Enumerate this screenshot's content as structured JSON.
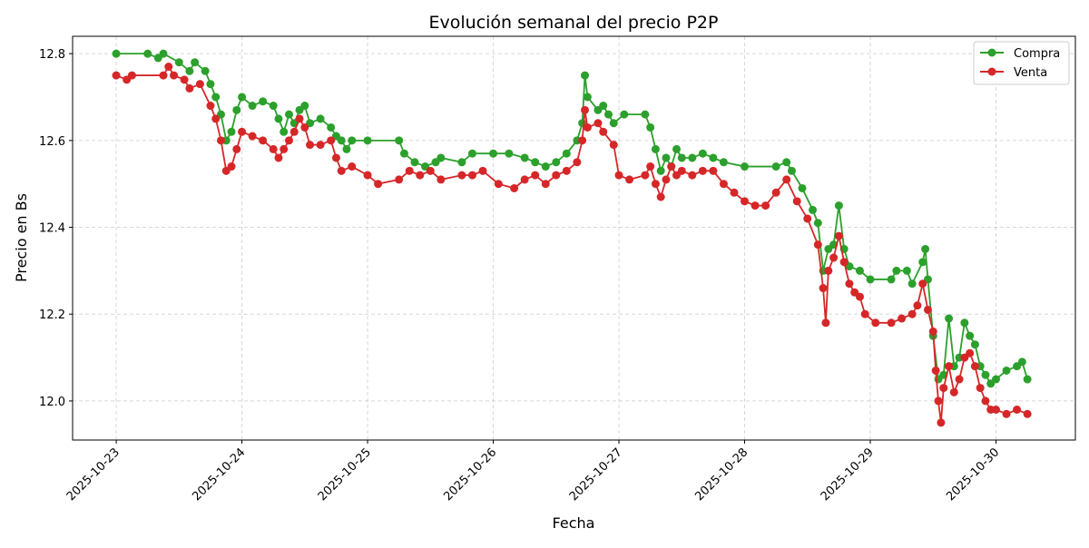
{
  "chart_data": {
    "type": "line",
    "title": "Evolución semanal del precio P2P",
    "xlabel": "Fecha",
    "ylabel": "Precio en Bs",
    "x_ticks": [
      "2025-10-23",
      "2025-10-24",
      "2025-10-25",
      "2025-10-26",
      "2025-10-27",
      "2025-10-28",
      "2025-10-29",
      "2025-10-30"
    ],
    "y_ticks": [
      "12.0",
      "12.2",
      "12.4",
      "12.6",
      "12.8"
    ],
    "ylim": [
      11.91,
      12.84
    ],
    "xlim": [
      "2025-10-22 15:40",
      "2025-10-30 15:10"
    ],
    "grid": true,
    "legend_position": "top-right",
    "series": [
      {
        "name": "Compra",
        "color": "#2ca02c",
        "points": [
          [
            "2025-10-23 00:00",
            12.8
          ],
          [
            "2025-10-23 06:00",
            12.8
          ],
          [
            "2025-10-23 08:00",
            12.79
          ],
          [
            "2025-10-23 09:00",
            12.8
          ],
          [
            "2025-10-23 12:00",
            12.78
          ],
          [
            "2025-10-23 14:00",
            12.76
          ],
          [
            "2025-10-23 15:00",
            12.78
          ],
          [
            "2025-10-23 17:00",
            12.76
          ],
          [
            "2025-10-23 18:00",
            12.73
          ],
          [
            "2025-10-23 19:00",
            12.7
          ],
          [
            "2025-10-23 20:00",
            12.66
          ],
          [
            "2025-10-23 21:00",
            12.6
          ],
          [
            "2025-10-23 22:00",
            12.62
          ],
          [
            "2025-10-23 23:00",
            12.67
          ],
          [
            "2025-10-24 00:00",
            12.7
          ],
          [
            "2025-10-24 02:00",
            12.68
          ],
          [
            "2025-10-24 04:00",
            12.69
          ],
          [
            "2025-10-24 06:00",
            12.68
          ],
          [
            "2025-10-24 07:00",
            12.65
          ],
          [
            "2025-10-24 08:00",
            12.62
          ],
          [
            "2025-10-24 09:00",
            12.66
          ],
          [
            "2025-10-24 10:00",
            12.64
          ],
          [
            "2025-10-24 11:00",
            12.67
          ],
          [
            "2025-10-24 12:00",
            12.68
          ],
          [
            "2025-10-24 13:00",
            12.64
          ],
          [
            "2025-10-24 15:00",
            12.65
          ],
          [
            "2025-10-24 17:00",
            12.63
          ],
          [
            "2025-10-24 18:00",
            12.61
          ],
          [
            "2025-10-24 19:00",
            12.6
          ],
          [
            "2025-10-24 20:00",
            12.58
          ],
          [
            "2025-10-24 21:00",
            12.6
          ],
          [
            "2025-10-25 00:00",
            12.6
          ],
          [
            "2025-10-25 06:00",
            12.6
          ],
          [
            "2025-10-25 07:00",
            12.57
          ],
          [
            "2025-10-25 09:00",
            12.55
          ],
          [
            "2025-10-25 11:00",
            12.54
          ],
          [
            "2025-10-25 13:00",
            12.55
          ],
          [
            "2025-10-25 14:00",
            12.56
          ],
          [
            "2025-10-25 18:00",
            12.55
          ],
          [
            "2025-10-25 20:00",
            12.57
          ],
          [
            "2025-10-26 00:00",
            12.57
          ],
          [
            "2025-10-26 03:00",
            12.57
          ],
          [
            "2025-10-26 06:00",
            12.56
          ],
          [
            "2025-10-26 08:00",
            12.55
          ],
          [
            "2025-10-26 10:00",
            12.54
          ],
          [
            "2025-10-26 12:00",
            12.55
          ],
          [
            "2025-10-26 14:00",
            12.57
          ],
          [
            "2025-10-26 16:00",
            12.6
          ],
          [
            "2025-10-26 17:00",
            12.64
          ],
          [
            "2025-10-26 17:30",
            12.75
          ],
          [
            "2025-10-26 18:00",
            12.7
          ],
          [
            "2025-10-26 20:00",
            12.67
          ],
          [
            "2025-10-26 21:00",
            12.68
          ],
          [
            "2025-10-26 22:00",
            12.66
          ],
          [
            "2025-10-26 23:00",
            12.64
          ],
          [
            "2025-10-27 01:00",
            12.66
          ],
          [
            "2025-10-27 05:00",
            12.66
          ],
          [
            "2025-10-27 06:00",
            12.63
          ],
          [
            "2025-10-27 07:00",
            12.58
          ],
          [
            "2025-10-27 08:00",
            12.53
          ],
          [
            "2025-10-27 09:00",
            12.56
          ],
          [
            "2025-10-27 10:00",
            12.54
          ],
          [
            "2025-10-27 11:00",
            12.58
          ],
          [
            "2025-10-27 12:00",
            12.56
          ],
          [
            "2025-10-27 14:00",
            12.56
          ],
          [
            "2025-10-27 16:00",
            12.57
          ],
          [
            "2025-10-27 18:00",
            12.56
          ],
          [
            "2025-10-27 20:00",
            12.55
          ],
          [
            "2025-10-28 00:00",
            12.54
          ],
          [
            "2025-10-28 06:00",
            12.54
          ],
          [
            "2025-10-28 08:00",
            12.55
          ],
          [
            "2025-10-28 09:00",
            12.53
          ],
          [
            "2025-10-28 11:00",
            12.49
          ],
          [
            "2025-10-28 13:00",
            12.44
          ],
          [
            "2025-10-28 14:00",
            12.41
          ],
          [
            "2025-10-28 15:00",
            12.3
          ],
          [
            "2025-10-28 16:00",
            12.35
          ],
          [
            "2025-10-28 17:00",
            12.36
          ],
          [
            "2025-10-28 18:00",
            12.45
          ],
          [
            "2025-10-28 19:00",
            12.35
          ],
          [
            "2025-10-28 20:00",
            12.31
          ],
          [
            "2025-10-28 22:00",
            12.3
          ],
          [
            "2025-10-29 00:00",
            12.28
          ],
          [
            "2025-10-29 04:00",
            12.28
          ],
          [
            "2025-10-29 05:00",
            12.3
          ],
          [
            "2025-10-29 07:00",
            12.3
          ],
          [
            "2025-10-29 08:00",
            12.27
          ],
          [
            "2025-10-29 10:00",
            12.32
          ],
          [
            "2025-10-29 10:30",
            12.35
          ],
          [
            "2025-10-29 11:00",
            12.28
          ],
          [
            "2025-10-29 12:00",
            12.15
          ],
          [
            "2025-10-29 13:00",
            12.05
          ],
          [
            "2025-10-29 14:00",
            12.06
          ],
          [
            "2025-10-29 15:00",
            12.19
          ],
          [
            "2025-10-29 16:00",
            12.08
          ],
          [
            "2025-10-29 17:00",
            12.1
          ],
          [
            "2025-10-29 18:00",
            12.18
          ],
          [
            "2025-10-29 19:00",
            12.15
          ],
          [
            "2025-10-29 20:00",
            12.13
          ],
          [
            "2025-10-29 21:00",
            12.08
          ],
          [
            "2025-10-29 22:00",
            12.06
          ],
          [
            "2025-10-29 23:00",
            12.04
          ],
          [
            "2025-10-30 00:00",
            12.05
          ],
          [
            "2025-10-30 02:00",
            12.07
          ],
          [
            "2025-10-30 04:00",
            12.08
          ],
          [
            "2025-10-30 05:00",
            12.09
          ],
          [
            "2025-10-30 06:00",
            12.05
          ]
        ]
      },
      {
        "name": "Venta",
        "color": "#d62728",
        "points": [
          [
            "2025-10-23 00:00",
            12.75
          ],
          [
            "2025-10-23 02:00",
            12.74
          ],
          [
            "2025-10-23 03:00",
            12.75
          ],
          [
            "2025-10-23 09:00",
            12.75
          ],
          [
            "2025-10-23 10:00",
            12.77
          ],
          [
            "2025-10-23 11:00",
            12.75
          ],
          [
            "2025-10-23 13:00",
            12.74
          ],
          [
            "2025-10-23 14:00",
            12.72
          ],
          [
            "2025-10-23 16:00",
            12.73
          ],
          [
            "2025-10-23 18:00",
            12.68
          ],
          [
            "2025-10-23 19:00",
            12.65
          ],
          [
            "2025-10-23 20:00",
            12.6
          ],
          [
            "2025-10-23 21:00",
            12.53
          ],
          [
            "2025-10-23 22:00",
            12.54
          ],
          [
            "2025-10-23 23:00",
            12.58
          ],
          [
            "2025-10-24 00:00",
            12.62
          ],
          [
            "2025-10-24 02:00",
            12.61
          ],
          [
            "2025-10-24 04:00",
            12.6
          ],
          [
            "2025-10-24 06:00",
            12.58
          ],
          [
            "2025-10-24 07:00",
            12.56
          ],
          [
            "2025-10-24 08:00",
            12.58
          ],
          [
            "2025-10-24 09:00",
            12.6
          ],
          [
            "2025-10-24 10:00",
            12.62
          ],
          [
            "2025-10-24 11:00",
            12.65
          ],
          [
            "2025-10-24 12:00",
            12.63
          ],
          [
            "2025-10-24 13:00",
            12.59
          ],
          [
            "2025-10-24 15:00",
            12.59
          ],
          [
            "2025-10-24 17:00",
            12.6
          ],
          [
            "2025-10-24 18:00",
            12.56
          ],
          [
            "2025-10-24 19:00",
            12.53
          ],
          [
            "2025-10-24 21:00",
            12.54
          ],
          [
            "2025-10-25 00:00",
            12.52
          ],
          [
            "2025-10-25 02:00",
            12.5
          ],
          [
            "2025-10-25 06:00",
            12.51
          ],
          [
            "2025-10-25 08:00",
            12.53
          ],
          [
            "2025-10-25 10:00",
            12.52
          ],
          [
            "2025-10-25 12:00",
            12.53
          ],
          [
            "2025-10-25 14:00",
            12.51
          ],
          [
            "2025-10-25 18:00",
            12.52
          ],
          [
            "2025-10-25 20:00",
            12.52
          ],
          [
            "2025-10-25 22:00",
            12.53
          ],
          [
            "2025-10-26 01:00",
            12.5
          ],
          [
            "2025-10-26 04:00",
            12.49
          ],
          [
            "2025-10-26 06:00",
            12.51
          ],
          [
            "2025-10-26 08:00",
            12.52
          ],
          [
            "2025-10-26 10:00",
            12.5
          ],
          [
            "2025-10-26 12:00",
            12.52
          ],
          [
            "2025-10-26 14:00",
            12.53
          ],
          [
            "2025-10-26 16:00",
            12.55
          ],
          [
            "2025-10-26 17:00",
            12.6
          ],
          [
            "2025-10-26 17:30",
            12.67
          ],
          [
            "2025-10-26 18:00",
            12.63
          ],
          [
            "2025-10-26 20:00",
            12.64
          ],
          [
            "2025-10-26 21:00",
            12.62
          ],
          [
            "2025-10-26 23:00",
            12.59
          ],
          [
            "2025-10-27 00:00",
            12.52
          ],
          [
            "2025-10-27 02:00",
            12.51
          ],
          [
            "2025-10-27 05:00",
            12.52
          ],
          [
            "2025-10-27 06:00",
            12.54
          ],
          [
            "2025-10-27 07:00",
            12.5
          ],
          [
            "2025-10-27 08:00",
            12.47
          ],
          [
            "2025-10-27 09:00",
            12.51
          ],
          [
            "2025-10-27 10:00",
            12.54
          ],
          [
            "2025-10-27 11:00",
            12.52
          ],
          [
            "2025-10-27 12:00",
            12.53
          ],
          [
            "2025-10-27 14:00",
            12.52
          ],
          [
            "2025-10-27 16:00",
            12.53
          ],
          [
            "2025-10-27 18:00",
            12.53
          ],
          [
            "2025-10-27 20:00",
            12.5
          ],
          [
            "2025-10-27 22:00",
            12.48
          ],
          [
            "2025-10-28 00:00",
            12.46
          ],
          [
            "2025-10-28 02:00",
            12.45
          ],
          [
            "2025-10-28 04:00",
            12.45
          ],
          [
            "2025-10-28 06:00",
            12.48
          ],
          [
            "2025-10-28 08:00",
            12.51
          ],
          [
            "2025-10-28 10:00",
            12.46
          ],
          [
            "2025-10-28 12:00",
            12.42
          ],
          [
            "2025-10-28 14:00",
            12.36
          ],
          [
            "2025-10-28 15:00",
            12.26
          ],
          [
            "2025-10-28 15:30",
            12.18
          ],
          [
            "2025-10-28 16:00",
            12.3
          ],
          [
            "2025-10-28 17:00",
            12.33
          ],
          [
            "2025-10-28 18:00",
            12.38
          ],
          [
            "2025-10-28 19:00",
            12.32
          ],
          [
            "2025-10-28 20:00",
            12.27
          ],
          [
            "2025-10-28 21:00",
            12.25
          ],
          [
            "2025-10-28 22:00",
            12.24
          ],
          [
            "2025-10-28 23:00",
            12.2
          ],
          [
            "2025-10-29 01:00",
            12.18
          ],
          [
            "2025-10-29 04:00",
            12.18
          ],
          [
            "2025-10-29 06:00",
            12.19
          ],
          [
            "2025-10-29 08:00",
            12.2
          ],
          [
            "2025-10-29 09:00",
            12.22
          ],
          [
            "2025-10-29 10:00",
            12.27
          ],
          [
            "2025-10-29 11:00",
            12.21
          ],
          [
            "2025-10-29 12:00",
            12.16
          ],
          [
            "2025-10-29 12:30",
            12.07
          ],
          [
            "2025-10-29 13:00",
            12.0
          ],
          [
            "2025-10-29 13:30",
            11.95
          ],
          [
            "2025-10-29 14:00",
            12.03
          ],
          [
            "2025-10-29 15:00",
            12.08
          ],
          [
            "2025-10-29 16:00",
            12.02
          ],
          [
            "2025-10-29 17:00",
            12.05
          ],
          [
            "2025-10-29 18:00",
            12.1
          ],
          [
            "2025-10-29 19:00",
            12.11
          ],
          [
            "2025-10-29 20:00",
            12.08
          ],
          [
            "2025-10-29 21:00",
            12.03
          ],
          [
            "2025-10-29 22:00",
            12.0
          ],
          [
            "2025-10-29 23:00",
            11.98
          ],
          [
            "2025-10-30 00:00",
            11.98
          ],
          [
            "2025-10-30 02:00",
            11.97
          ],
          [
            "2025-10-30 04:00",
            11.98
          ],
          [
            "2025-10-30 06:00",
            11.97
          ]
        ]
      }
    ]
  }
}
